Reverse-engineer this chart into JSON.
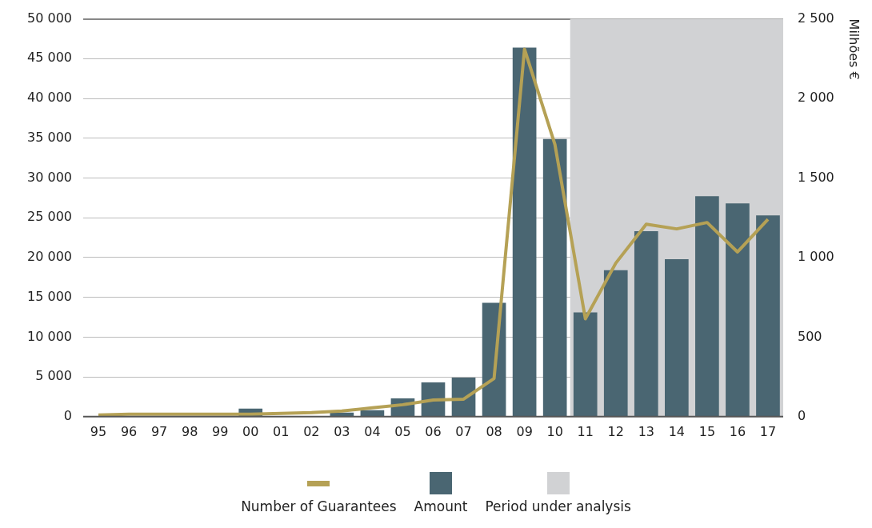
{
  "chart_data": {
    "type": "bar",
    "categories": [
      "95",
      "96",
      "97",
      "98",
      "99",
      "00",
      "01",
      "02",
      "03",
      "04",
      "05",
      "06",
      "07",
      "08",
      "09",
      "10",
      "11",
      "12",
      "13",
      "14",
      "15",
      "16",
      "17"
    ],
    "series": [
      {
        "name": "Number of Guarantees",
        "type": "line",
        "color": "#b5a155",
        "values": [
          200,
          300,
          300,
          300,
          300,
          300,
          400,
          500,
          700,
          1100,
          1500,
          2100,
          2200,
          4800,
          46200,
          34200,
          12300,
          19300,
          24200,
          23600,
          24400,
          20700,
          24800
        ]
      },
      {
        "name": "Amount",
        "axis": "y2",
        "color": "#4a6672",
        "values": [
          null,
          null,
          null,
          null,
          null,
          50,
          null,
          null,
          25,
          40,
          115,
          215,
          245,
          715,
          2320,
          1745,
          655,
          920,
          1165,
          990,
          1385,
          1340,
          1265
        ]
      }
    ],
    "ylim": [
      0,
      50000
    ],
    "yticks": [
      0,
      {
        "value": 5000,
        "label": "5 000"
      },
      {
        "value": 10000,
        "label": "10 000"
      },
      {
        "value": 15000,
        "label": "15 000"
      },
      {
        "value": 20000,
        "label": "20 000"
      },
      {
        "value": 25000,
        "label": "25 000"
      },
      {
        "value": 30000,
        "label": "30 000"
      },
      {
        "value": 35000,
        "label": "35 000"
      },
      {
        "value": 40000,
        "label": "40 000"
      },
      {
        "value": 45000,
        "label": "45 000"
      },
      {
        "value": 50000,
        "label": "50 000"
      }
    ],
    "y2lim": [
      0,
      2500
    ],
    "y2ticks": [
      0,
      500,
      {
        "value": 1000,
        "label": "1 000"
      },
      {
        "value": 1500,
        "label": "1 500"
      },
      {
        "value": 2000,
        "label": "2 000"
      },
      {
        "value": 2500,
        "label": "2 500"
      }
    ],
    "y2label": "Milhões €",
    "bands": [
      {
        "axis": "x",
        "from": "11",
        "to": "17",
        "label": "Period under analysis",
        "color": "#d1d2d4"
      }
    ],
    "grid": "y",
    "legend": "bottom"
  }
}
